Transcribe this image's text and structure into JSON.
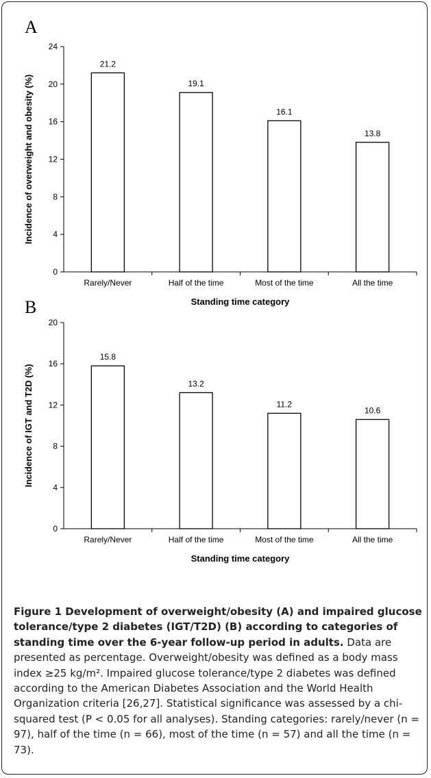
{
  "chart_data": [
    {
      "type": "bar",
      "panel_label": "A",
      "categories": [
        "Rarely/Never",
        "Half of the time",
        "Most of the time",
        "All the time"
      ],
      "values": [
        21.2,
        19.1,
        16.1,
        13.8
      ],
      "value_labels": [
        "21.2",
        "19.1",
        "16.1",
        "13.8"
      ],
      "xlabel": "Standing time category",
      "ylabel": "Incidence of overweight and obesity (%)",
      "ylim": [
        0,
        24
      ],
      "yticks": [
        0,
        4,
        8,
        12,
        16,
        20,
        24
      ],
      "grid": false,
      "bar_fill": "#ffffff",
      "bar_stroke": "#000000"
    },
    {
      "type": "bar",
      "panel_label": "B",
      "categories": [
        "Rarely/Never",
        "Half of the time",
        "Most of the time",
        "All the time"
      ],
      "values": [
        15.8,
        13.2,
        11.2,
        10.6
      ],
      "value_labels": [
        "15.8",
        "13.2",
        "11.2",
        "10.6"
      ],
      "xlabel": "Standing time category",
      "ylabel": "Incidence of IGT and T2D (%)",
      "ylim": [
        0,
        20
      ],
      "yticks": [
        0,
        4,
        8,
        12,
        16,
        20
      ],
      "grid": false,
      "bar_fill": "#ffffff",
      "bar_stroke": "#000000"
    }
  ],
  "caption": {
    "title": "Figure 1 Development of overweight/obesity (A) and impaired glucose tolerance/type 2 diabetes (IGT/T2D) (B) according to categories of standing time over the 6-year follow-up period in adults.",
    "body": " Data are presented as percentage. Overweight/obesity was defined as a body mass index ≥25 kg/m². Impaired glucose tolerance/type 2 diabetes was defined according to the American Diabetes Association and the World Health Organization criteria [26,27]. Statistical significance was assessed by a chi-squared test (P < 0.05 for all analyses). Standing categories: rarely/never (n = 97), half of the time (n = 66), most of the time (n = 57) and all the time (n = 73)."
  },
  "colors": {
    "frame_border": "#222222",
    "text": "#000000",
    "caption_text": "#222222"
  }
}
